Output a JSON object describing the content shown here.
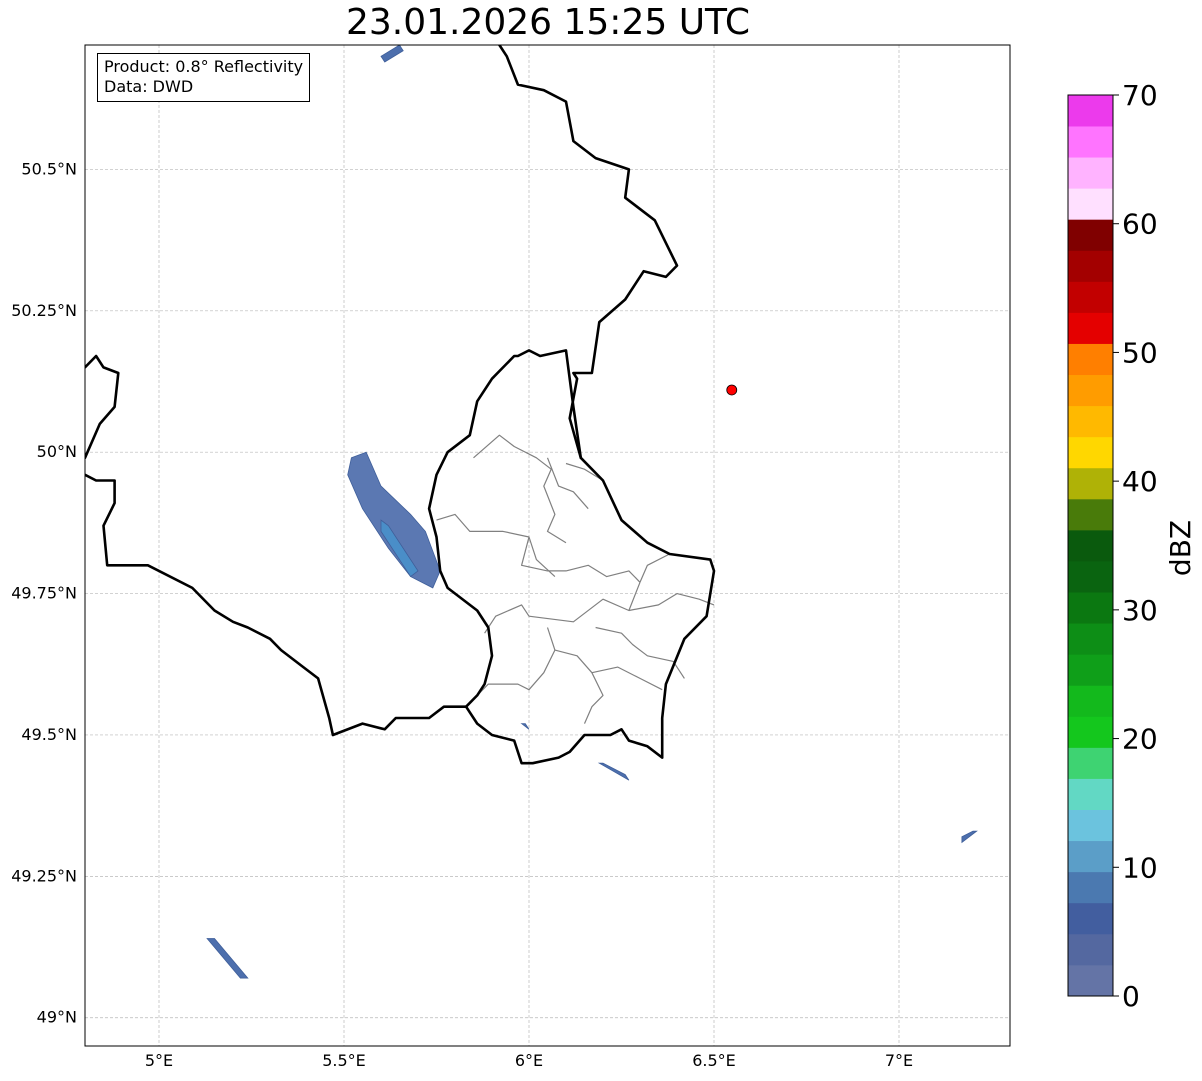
{
  "title": "23.01.2026 15:25 UTC",
  "info": {
    "product_line": "Product: 0.8° Reflectivity",
    "data_line": "Data: DWD"
  },
  "axes": {
    "lon_range": [
      4.8,
      7.3
    ],
    "lat_range": [
      48.95,
      50.72
    ],
    "x_ticks": [
      {
        "value": 5.0,
        "label": "5°E"
      },
      {
        "value": 5.5,
        "label": "5.5°E"
      },
      {
        "value": 6.0,
        "label": "6°E"
      },
      {
        "value": 6.5,
        "label": "6.5°E"
      },
      {
        "value": 7.0,
        "label": "7°E"
      }
    ],
    "y_ticks": [
      {
        "value": 50.5,
        "label": "50.5°N"
      },
      {
        "value": 50.25,
        "label": "50.25°N"
      },
      {
        "value": 50.0,
        "label": "50°N"
      },
      {
        "value": 49.75,
        "label": "49.75°N"
      },
      {
        "value": 49.5,
        "label": "49.5°N"
      },
      {
        "value": 49.25,
        "label": "49.25°N"
      },
      {
        "value": 49.0,
        "label": "49°N"
      }
    ],
    "grid": true
  },
  "colorbar": {
    "unit": "dBZ",
    "min": 0,
    "max": 70,
    "tick_labels": [
      "0",
      "10",
      "20",
      "30",
      "40",
      "50",
      "60",
      "70"
    ],
    "colors": [
      "#6474a6",
      "#5468a0",
      "#425e9f",
      "#4b79b0",
      "#5b9ec8",
      "#6bc3de",
      "#62d8c4",
      "#3ed372",
      "#14c71d",
      "#13b91c",
      "#0f9f19",
      "#0d8e16",
      "#0b7811",
      "#0a6410",
      "#0a5a0d",
      "#497b0a",
      "#afb206",
      "#ffd700",
      "#ffb900",
      "#ff9c00",
      "#ff7f00",
      "#e40000",
      "#c20000",
      "#a30000",
      "#800000",
      "#ffe0ff",
      "#ffb3ff",
      "#ff74ff",
      "#ec3aec"
    ]
  },
  "radar_site": {
    "lon": 6.548,
    "lat": 50.11,
    "color": "#ff0000"
  },
  "echoes": [
    {
      "color": "#5b78b2",
      "points": [
        [
          5.52,
          49.99
        ],
        [
          5.56,
          50.0
        ],
        [
          5.6,
          49.94
        ],
        [
          5.68,
          49.89
        ],
        [
          5.72,
          49.86
        ],
        [
          5.76,
          49.79
        ],
        [
          5.74,
          49.76
        ],
        [
          5.68,
          49.78
        ],
        [
          5.62,
          49.83
        ],
        [
          5.55,
          49.9
        ],
        [
          5.51,
          49.96
        ]
      ]
    },
    {
      "color": "#4a8ec8",
      "points": [
        [
          5.6,
          49.88
        ],
        [
          5.62,
          49.87
        ],
        [
          5.7,
          49.79
        ],
        [
          5.68,
          49.78
        ],
        [
          5.6,
          49.86
        ]
      ]
    },
    {
      "color": "#4d6fad",
      "points": [
        [
          5.13,
          49.14
        ],
        [
          5.15,
          49.14
        ],
        [
          5.24,
          49.07
        ],
        [
          5.22,
          49.07
        ]
      ]
    },
    {
      "color": "#4d6fad",
      "points": [
        [
          5.61,
          50.69
        ],
        [
          5.66,
          50.71
        ],
        [
          5.65,
          50.72
        ],
        [
          5.6,
          50.7
        ]
      ]
    },
    {
      "color": "#4d6fad",
      "points": [
        [
          6.19,
          49.45
        ],
        [
          6.27,
          49.42
        ],
        [
          6.26,
          49.43
        ],
        [
          6.2,
          49.45
        ]
      ]
    },
    {
      "color": "#4d6fad",
      "points": [
        [
          7.17,
          49.31
        ],
        [
          7.21,
          49.33
        ],
        [
          7.2,
          49.33
        ],
        [
          7.17,
          49.32
        ]
      ]
    },
    {
      "color": "#4d6fad",
      "points": [
        [
          5.98,
          49.52
        ],
        [
          6.0,
          49.51
        ],
        [
          5.99,
          49.52
        ]
      ]
    }
  ],
  "borders": [
    [
      [
        5.92,
        50.72
      ],
      [
        5.94,
        50.7
      ],
      [
        5.97,
        50.65
      ],
      [
        6.04,
        50.64
      ],
      [
        6.1,
        50.62
      ],
      [
        6.12,
        50.55
      ],
      [
        6.18,
        50.52
      ],
      [
        6.27,
        50.5
      ],
      [
        6.26,
        50.45
      ],
      [
        6.34,
        50.41
      ],
      [
        6.4,
        50.33
      ],
      [
        6.37,
        50.31
      ],
      [
        6.31,
        50.32
      ],
      [
        6.26,
        50.27
      ],
      [
        6.19,
        50.23
      ],
      [
        6.17,
        50.14
      ],
      [
        6.12,
        50.14
      ],
      [
        6.13,
        50.13
      ],
      [
        6.11,
        50.06
      ],
      [
        6.14,
        49.99
      ],
      [
        6.2,
        49.95
      ],
      [
        6.25,
        49.88
      ],
      [
        6.32,
        49.84
      ],
      [
        6.38,
        49.82
      ],
      [
        6.49,
        49.81
      ],
      [
        6.5,
        49.79
      ],
      [
        6.48,
        49.71
      ],
      [
        6.42,
        49.67
      ],
      [
        6.37,
        49.59
      ],
      [
        6.36,
        49.53
      ],
      [
        6.36,
        49.46
      ],
      [
        6.32,
        49.48
      ],
      [
        6.27,
        49.49
      ],
      [
        6.25,
        49.51
      ],
      [
        6.22,
        49.5
      ],
      [
        6.15,
        49.5
      ],
      [
        6.11,
        49.47
      ],
      [
        6.08,
        49.46
      ],
      [
        6.01,
        49.45
      ],
      [
        5.98,
        49.45
      ],
      [
        5.96,
        49.49
      ],
      [
        5.9,
        49.5
      ],
      [
        5.86,
        49.52
      ],
      [
        5.83,
        49.55
      ],
      [
        5.81,
        49.55
      ],
      [
        5.77,
        49.55
      ],
      [
        5.73,
        49.53
      ],
      [
        5.64,
        49.53
      ],
      [
        5.61,
        49.51
      ],
      [
        5.55,
        49.52
      ],
      [
        5.47,
        49.5
      ],
      [
        5.46,
        49.53
      ],
      [
        5.43,
        49.6
      ],
      [
        5.39,
        49.62
      ],
      [
        5.33,
        49.65
      ],
      [
        5.3,
        49.67
      ],
      [
        5.24,
        49.69
      ],
      [
        5.2,
        49.7
      ],
      [
        5.15,
        49.72
      ],
      [
        5.09,
        49.76
      ],
      [
        4.97,
        49.8
      ],
      [
        4.88,
        49.8
      ],
      [
        4.86,
        49.8
      ],
      [
        4.85,
        49.87
      ],
      [
        4.88,
        49.91
      ],
      [
        4.88,
        49.95
      ],
      [
        4.83,
        49.95
      ],
      [
        4.8,
        49.96
      ]
    ],
    [
      [
        4.8,
        50.15
      ],
      [
        4.83,
        50.17
      ],
      [
        4.85,
        50.15
      ],
      [
        4.89,
        50.14
      ],
      [
        4.88,
        50.08
      ],
      [
        4.84,
        50.05
      ],
      [
        4.82,
        50.02
      ],
      [
        4.8,
        49.99
      ]
    ],
    [
      [
        6.14,
        49.99
      ],
      [
        6.12,
        50.08
      ],
      [
        6.1,
        50.18
      ],
      [
        6.03,
        50.17
      ],
      [
        6.0,
        50.18
      ],
      [
        5.97,
        50.17
      ],
      [
        5.96,
        50.17
      ],
      [
        5.9,
        50.13
      ],
      [
        5.86,
        50.09
      ],
      [
        5.84,
        50.03
      ],
      [
        5.78,
        50.0
      ],
      [
        5.75,
        49.96
      ],
      [
        5.73,
        49.9
      ],
      [
        5.75,
        49.85
      ],
      [
        5.76,
        49.79
      ],
      [
        5.78,
        49.76
      ],
      [
        5.86,
        49.72
      ],
      [
        5.89,
        49.69
      ],
      [
        5.9,
        49.64
      ],
      [
        5.88,
        49.59
      ],
      [
        5.86,
        49.57
      ],
      [
        5.83,
        49.55
      ]
    ]
  ],
  "cantons": [
    [
      [
        5.85,
        49.99
      ],
      [
        5.92,
        50.03
      ],
      [
        5.96,
        50.01
      ],
      [
        6.02,
        49.99
      ],
      [
        6.06,
        49.97
      ],
      [
        6.04,
        49.94
      ],
      [
        6.07,
        49.89
      ],
      [
        6.05,
        49.86
      ],
      [
        6.1,
        49.84
      ]
    ],
    [
      [
        6.1,
        49.98
      ],
      [
        6.15,
        49.97
      ],
      [
        6.2,
        49.95
      ]
    ],
    [
      [
        5.75,
        49.88
      ],
      [
        5.8,
        49.89
      ],
      [
        5.84,
        49.86
      ],
      [
        5.93,
        49.86
      ],
      [
        6.0,
        49.85
      ],
      [
        6.02,
        49.81
      ],
      [
        6.07,
        49.78
      ]
    ],
    [
      [
        6.0,
        49.85
      ],
      [
        5.98,
        49.8
      ],
      [
        6.05,
        49.79
      ],
      [
        6.1,
        49.79
      ],
      [
        6.16,
        49.8
      ],
      [
        6.21,
        49.78
      ],
      [
        6.27,
        49.79
      ],
      [
        6.3,
        49.77
      ]
    ],
    [
      [
        6.3,
        49.77
      ],
      [
        6.27,
        49.72
      ],
      [
        6.2,
        49.74
      ],
      [
        6.12,
        49.7
      ],
      [
        6.0,
        49.71
      ],
      [
        5.98,
        49.73
      ],
      [
        5.91,
        49.71
      ],
      [
        5.88,
        49.68
      ]
    ],
    [
      [
        6.27,
        49.72
      ],
      [
        6.35,
        49.73
      ],
      [
        6.4,
        49.75
      ],
      [
        6.46,
        49.74
      ],
      [
        6.5,
        49.73
      ]
    ],
    [
      [
        6.18,
        49.69
      ],
      [
        6.25,
        49.68
      ],
      [
        6.28,
        49.66
      ],
      [
        6.32,
        49.64
      ],
      [
        6.39,
        49.63
      ],
      [
        6.42,
        49.6
      ]
    ],
    [
      [
        6.05,
        49.69
      ],
      [
        6.07,
        49.65
      ],
      [
        6.04,
        49.61
      ],
      [
        6.0,
        49.58
      ],
      [
        5.97,
        49.59
      ],
      [
        5.89,
        49.59
      ],
      [
        5.86,
        49.57
      ]
    ],
    [
      [
        6.07,
        49.65
      ],
      [
        6.13,
        49.64
      ],
      [
        6.17,
        49.61
      ],
      [
        6.2,
        49.57
      ],
      [
        6.17,
        49.55
      ],
      [
        6.15,
        49.52
      ]
    ],
    [
      [
        6.17,
        49.61
      ],
      [
        6.24,
        49.62
      ],
      [
        6.3,
        49.6
      ],
      [
        6.36,
        49.58
      ]
    ],
    [
      [
        6.05,
        49.99
      ],
      [
        6.08,
        49.94
      ],
      [
        6.12,
        49.93
      ],
      [
        6.16,
        49.9
      ]
    ],
    [
      [
        6.38,
        49.82
      ],
      [
        6.32,
        49.8
      ],
      [
        6.3,
        49.77
      ]
    ]
  ]
}
